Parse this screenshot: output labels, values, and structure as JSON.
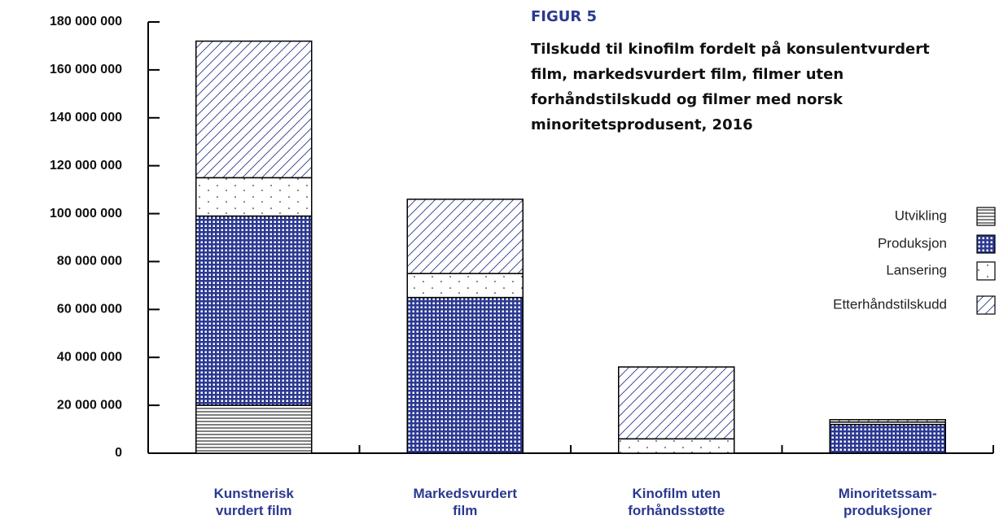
{
  "chart_data": {
    "type": "stacked_bar",
    "title": "FIGUR 5",
    "subtitle": "Tilskudd til kinofilm fordelt på konsulentvurdert\nfilm, markedsvurdert film, filmer uten\nforhåndstilskudd og filmer med norsk\nminoritetsprodusent, 2016",
    "categories": [
      "Kunstnerisk\nvurdert film",
      "Markedsvurdert\nfilm",
      "Kinofilm uten\nforhåndsstøtte",
      "Minoritetssam-\nproduksjoner"
    ],
    "series": [
      {
        "name": "Utvikling",
        "color": "#000000",
        "pattern": "horizontal",
        "values": [
          20000000,
          0,
          0,
          0
        ]
      },
      {
        "name": "Produksjon",
        "color": "#2b3990",
        "pattern": "grid",
        "values": [
          79000000,
          65000000,
          0,
          12000000
        ]
      },
      {
        "name": "Lansering",
        "color": "#000000",
        "pattern": "dots",
        "values": [
          16000000,
          10000000,
          6000000,
          1000000
        ]
      },
      {
        "name": "Etterhåndstilskudd",
        "color": "#2b3990",
        "pattern": "diagonal",
        "values": [
          57000000,
          31000000,
          30000000,
          1000000
        ]
      }
    ],
    "ylim": [
      0,
      180000000
    ],
    "yticks": [
      {
        "value": 0,
        "label": "0"
      },
      {
        "value": 20000000,
        "label": "20 000 000"
      },
      {
        "value": 40000000,
        "label": "40 000 000"
      },
      {
        "value": 60000000,
        "label": "60 000 000"
      },
      {
        "value": 80000000,
        "label": "80 000 000"
      },
      {
        "value": 100000000,
        "label": "100 000 000"
      },
      {
        "value": 120000000,
        "label": "120 000 000"
      },
      {
        "value": 140000000,
        "label": "140 000 000"
      },
      {
        "value": 160000000,
        "label": "160 000 000"
      },
      {
        "value": 180000000,
        "label": "180 000 000"
      }
    ]
  }
}
